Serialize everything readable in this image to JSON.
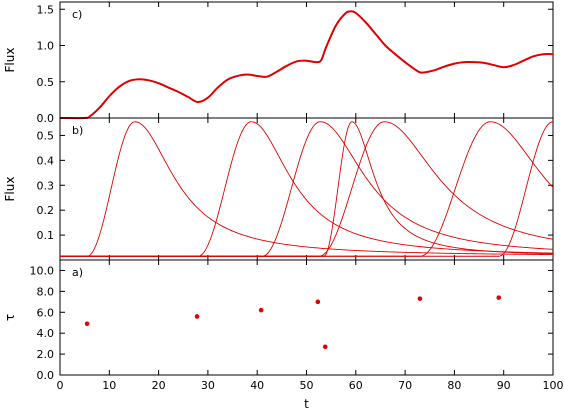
{
  "chart_data": [
    {
      "panel_label": "c)",
      "type": "line",
      "xlim": [
        0,
        100
      ],
      "ylim": [
        0,
        1.6
      ],
      "xticks": [
        0,
        10,
        20,
        30,
        40,
        50,
        60,
        70,
        80,
        90,
        100
      ],
      "yticks": [
        0.0,
        0.5,
        1.0,
        1.5
      ],
      "ytick_labels": [
        "0.0",
        "0.5",
        "1.0",
        "1.5"
      ],
      "ylabel": "Flux",
      "series": [
        {
          "x": [
            0,
            5,
            6,
            8,
            10,
            12,
            14,
            16,
            18,
            20,
            22,
            24,
            26,
            28,
            30,
            32,
            34,
            36,
            38,
            40,
            42,
            44,
            46,
            48,
            50,
            52,
            53,
            54,
            56,
            58,
            59,
            60,
            62,
            64,
            66,
            68,
            70,
            72,
            73,
            74,
            76,
            78,
            80,
            82,
            84,
            86,
            88,
            90,
            92,
            94,
            96,
            98,
            100
          ],
          "y": [
            0,
            0,
            0.02,
            0.14,
            0.3,
            0.43,
            0.51,
            0.535,
            0.52,
            0.48,
            0.42,
            0.36,
            0.29,
            0.22,
            0.28,
            0.42,
            0.53,
            0.58,
            0.6,
            0.58,
            0.57,
            0.64,
            0.72,
            0.78,
            0.79,
            0.77,
            0.8,
            0.98,
            1.28,
            1.45,
            1.47,
            1.45,
            1.32,
            1.16,
            1.0,
            0.88,
            0.77,
            0.67,
            0.63,
            0.63,
            0.66,
            0.71,
            0.75,
            0.77,
            0.77,
            0.76,
            0.73,
            0.7,
            0.73,
            0.79,
            0.85,
            0.88,
            0.88
          ]
        }
      ]
    },
    {
      "panel_label": "b)",
      "type": "line",
      "xlim": [
        0,
        100
      ],
      "ylim": [
        0,
        0.57
      ],
      "xticks": [
        0,
        10,
        20,
        30,
        40,
        50,
        60,
        70,
        80,
        90,
        100
      ],
      "yticks": [
        0.1,
        0.2,
        0.3,
        0.4,
        0.5
      ],
      "ytick_labels": [
        "0.1",
        "0.2",
        "0.3",
        "0.4",
        "0.5"
      ],
      "ylabel": "Flux",
      "pulses": [
        {
          "start": 5.5,
          "peak": 15.2,
          "amplitude": 0.54,
          "decay": 9.5
        },
        {
          "start": 28.0,
          "peak": 38.8,
          "amplitude": 0.54,
          "decay": 9.5
        },
        {
          "start": 41.0,
          "peak": 52.8,
          "amplitude": 0.54,
          "decay": 11.0
        },
        {
          "start": 53.5,
          "peak": 59.2,
          "amplitude": 0.54,
          "decay": 5.5
        },
        {
          "start": 52.5,
          "peak": 65.8,
          "amplitude": 0.54,
          "decay": 13.0
        },
        {
          "start": 73.0,
          "peak": 87.3,
          "amplitude": 0.54,
          "decay": 13.0
        },
        {
          "start": 89.0,
          "peak": 100.0,
          "amplitude": 0.54,
          "decay": 12.0
        }
      ]
    },
    {
      "panel_label": "a)",
      "type": "scatter",
      "xlim": [
        0,
        100
      ],
      "ylim": [
        0,
        11
      ],
      "xticks": [
        0,
        10,
        20,
        30,
        40,
        50,
        60,
        70,
        80,
        90,
        100
      ],
      "xtick_labels": [
        "0",
        "10",
        "20",
        "30",
        "40",
        "50",
        "60",
        "70",
        "80",
        "90",
        "100"
      ],
      "yticks": [
        0,
        2,
        4,
        6,
        8,
        10
      ],
      "ytick_labels": [
        "0.0",
        "2.0",
        "4.0",
        "6.0",
        "8.0",
        "10.0"
      ],
      "ylabel": "τ",
      "xlabel": "t",
      "points": [
        {
          "x": 5.5,
          "y": 4.9
        },
        {
          "x": 27.8,
          "y": 5.6
        },
        {
          "x": 40.8,
          "y": 6.2
        },
        {
          "x": 52.3,
          "y": 7.0
        },
        {
          "x": 53.8,
          "y": 2.7
        },
        {
          "x": 73.0,
          "y": 7.3
        },
        {
          "x": 89.0,
          "y": 7.4
        }
      ]
    }
  ]
}
